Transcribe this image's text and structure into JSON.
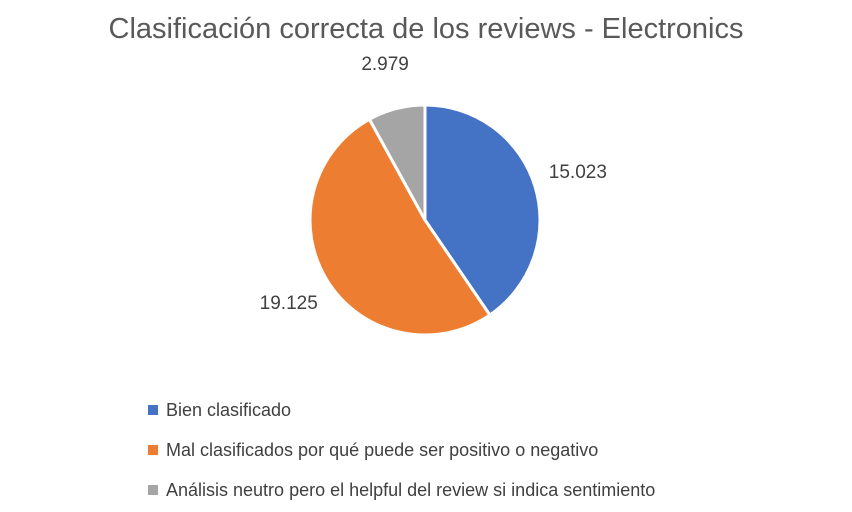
{
  "chart_data": {
    "type": "pie",
    "title": "Clasificación correcta de los reviews - Electronics",
    "categories": [
      "Bien clasificado",
      "Mal clasificados por qué puede ser positivo o negativo",
      "Análisis neutro pero el helpful del review si indica sentimiento"
    ],
    "values": [
      15023,
      19125,
      2979
    ],
    "value_labels": [
      "15.023",
      "19.125",
      "2.979"
    ],
    "colors": [
      "#4472C4",
      "#ED7D31",
      "#A5A5A5"
    ],
    "legend_position": "bottom"
  },
  "legend": [
    {
      "label": "Bien clasificado",
      "color": "#4472C4"
    },
    {
      "label": "Mal clasificados por qué puede ser positivo o negativo",
      "color": "#ED7D31"
    },
    {
      "label": "Análisis neutro pero el helpful del review si indica sentimiento",
      "color": "#A5A5A5"
    }
  ]
}
